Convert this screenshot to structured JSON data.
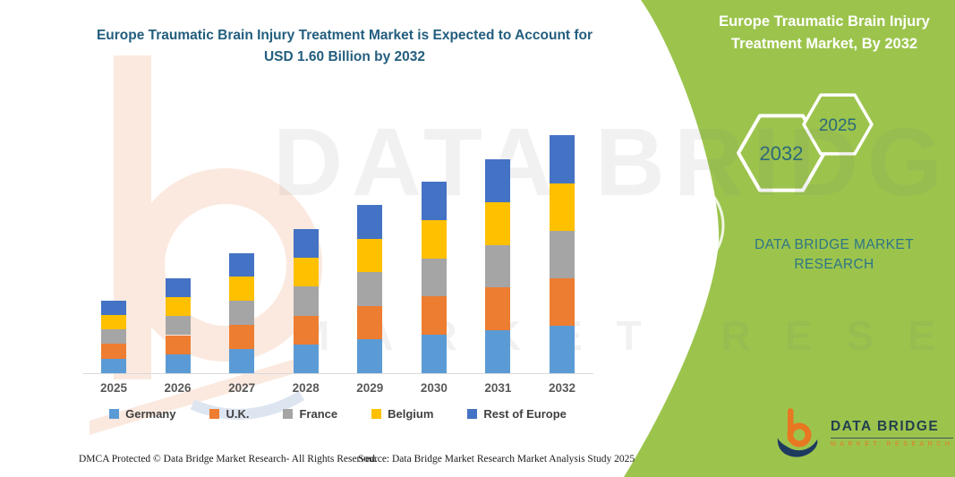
{
  "chart_data": {
    "type": "bar",
    "stacked": true,
    "title": "Europe Traumatic Brain Injury Treatment Market is Expected to Account for USD 1.60 Billion by 2032",
    "unit": "USD Billion",
    "categories": [
      "2025",
      "2026",
      "2027",
      "2028",
      "2029",
      "2030",
      "2031",
      "2032"
    ],
    "series": [
      {
        "name": "Germany",
        "color": "#5B9BD5",
        "values": [
          0.098,
          0.128,
          0.162,
          0.194,
          0.226,
          0.258,
          0.288,
          0.32
        ]
      },
      {
        "name": "U.K.",
        "color": "#ED7D31",
        "values": [
          0.098,
          0.128,
          0.162,
          0.194,
          0.226,
          0.258,
          0.288,
          0.32
        ]
      },
      {
        "name": "France",
        "color": "#A5A5A5",
        "values": [
          0.098,
          0.128,
          0.162,
          0.194,
          0.226,
          0.258,
          0.288,
          0.32
        ]
      },
      {
        "name": "Belgium",
        "color": "#FFC000",
        "values": [
          0.098,
          0.128,
          0.162,
          0.194,
          0.226,
          0.258,
          0.288,
          0.32
        ]
      },
      {
        "name": "Rest of Europe",
        "color": "#4472C4",
        "values": [
          0.098,
          0.128,
          0.162,
          0.194,
          0.226,
          0.258,
          0.288,
          0.32
        ]
      }
    ],
    "totals": [
      0.49,
      0.64,
      0.81,
      0.97,
      1.13,
      1.29,
      1.44,
      1.6
    ],
    "xlabel": "",
    "ylabel": "",
    "ylim": [
      0,
      1.7
    ],
    "gridlines": false,
    "legend_position": "bottom"
  },
  "main": {
    "title": "Europe Traumatic Brain Injury Treatment Market is Expected to Account for USD 1.60 Billion by 2032"
  },
  "side_panel": {
    "title": "Europe Traumatic Brain Injury Treatment Market, By 2032",
    "hexagon_large_label": "2032",
    "hexagon_small_label": "2025",
    "brand_text": "DATA BRIDGE MARKET RESEARCH"
  },
  "logo": {
    "name": "DATA BRIDGE",
    "subtext": "MARKET RESEARCH"
  },
  "watermark": {
    "line1": "DATA BRIDGE",
    "line2": "MARKET RESEARCH"
  },
  "footer": {
    "left": "DMCA Protected © Data Bridge Market Research-  All Rights Reserved.",
    "right": "Source: Data Bridge Market Research  Market Analysis Study 2025"
  },
  "colors": {
    "panel_green": "#9CC44D",
    "title_blue": "#235E7E",
    "hexagon_text": "#2B6A79",
    "brand_teal": "#2E7585",
    "logo_orange": "#E87722",
    "logo_navy": "#1E3A5F",
    "axis_gray": "#D9D9D9"
  }
}
